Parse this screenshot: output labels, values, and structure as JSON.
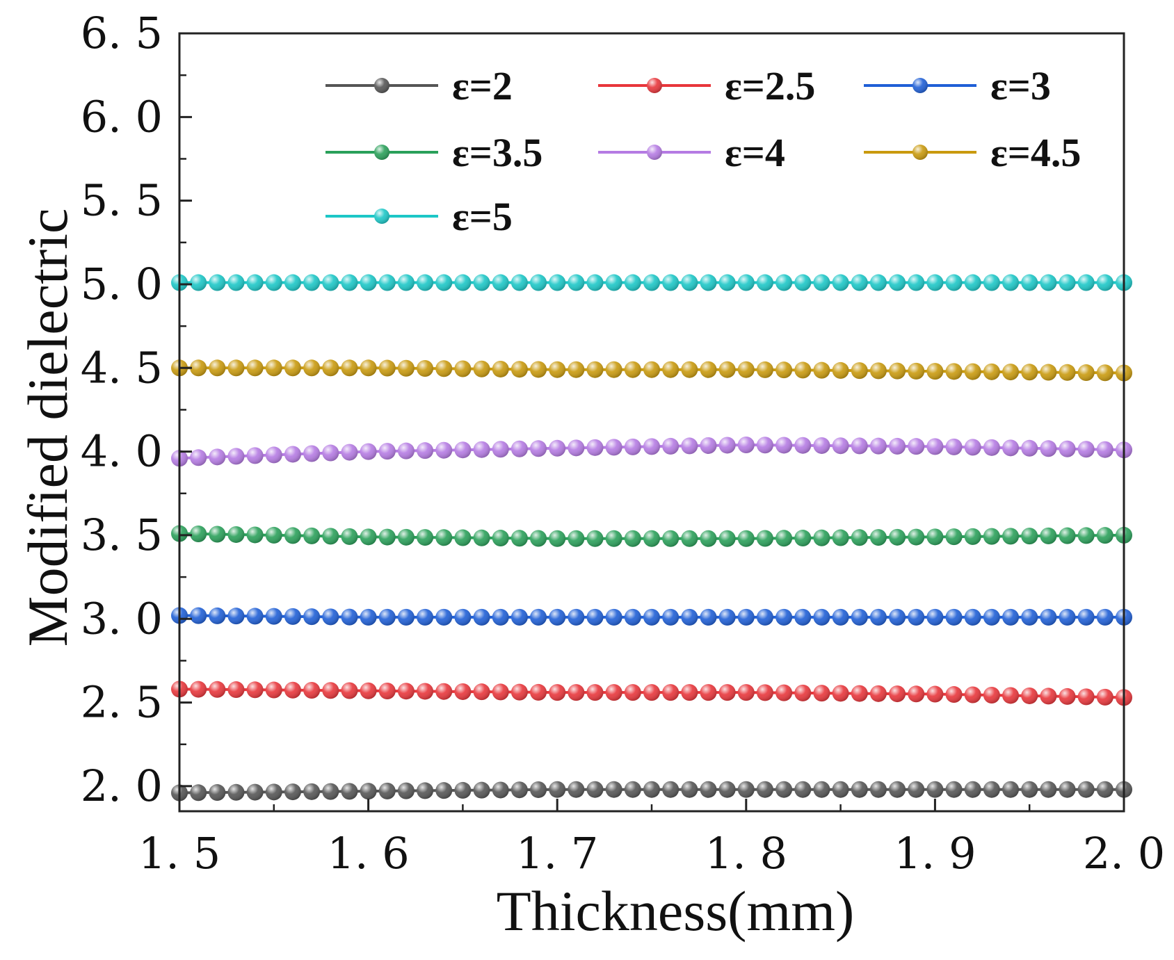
{
  "chart_data": {
    "type": "line",
    "title": "",
    "xlabel": "Thickness(mm)",
    "ylabel": "Modified dielectric",
    "xlim": [
      1.5,
      2.0
    ],
    "ylim": [
      1.85,
      6.5
    ],
    "xticks": [
      1.5,
      1.6,
      1.7,
      1.8,
      1.9,
      2.0
    ],
    "xtick_labels": [
      "1. 5",
      "1. 6",
      "1. 7",
      "1. 8",
      "1. 9",
      "2. 0"
    ],
    "yticks": [
      2.0,
      2.5,
      3.0,
      3.5,
      4.0,
      4.5,
      5.0,
      5.5,
      6.0,
      6.5
    ],
    "ytick_labels": [
      "2. 0",
      "2. 5",
      "3. 0",
      "3. 5",
      "4. 0",
      "4. 5",
      "5. 0",
      "5. 5",
      "6. 0",
      "6. 5"
    ],
    "grid": false,
    "legend_position": "top",
    "marker": "circle",
    "x_start": 1.5,
    "x_end": 2.0,
    "num_points": 51,
    "series": [
      {
        "name": "ε=2",
        "color": "#555555",
        "values": [
          1.96,
          1.97,
          1.98,
          1.98,
          1.98,
          1.98
        ]
      },
      {
        "name": "ε=2.5",
        "color": "#e8363b",
        "values": [
          2.58,
          2.57,
          2.56,
          2.56,
          2.55,
          2.53
        ]
      },
      {
        "name": "ε=3",
        "color": "#1f5fd6",
        "values": [
          3.02,
          3.01,
          3.01,
          3.01,
          3.01,
          3.01
        ]
      },
      {
        "name": "ε=3.5",
        "color": "#2aa05a",
        "values": [
          3.51,
          3.49,
          3.48,
          3.48,
          3.49,
          3.5
        ]
      },
      {
        "name": "ε=4",
        "color": "#b57be3",
        "values": [
          3.96,
          4.0,
          4.02,
          4.04,
          4.03,
          4.01
        ]
      },
      {
        "name": "ε=4.5",
        "color": "#c99a0e",
        "values": [
          4.5,
          4.5,
          4.49,
          4.49,
          4.48,
          4.47
        ]
      },
      {
        "name": "ε=5",
        "color": "#1cc7c7",
        "values": [
          5.01,
          5.01,
          5.01,
          5.01,
          5.01,
          5.01
        ]
      }
    ]
  }
}
